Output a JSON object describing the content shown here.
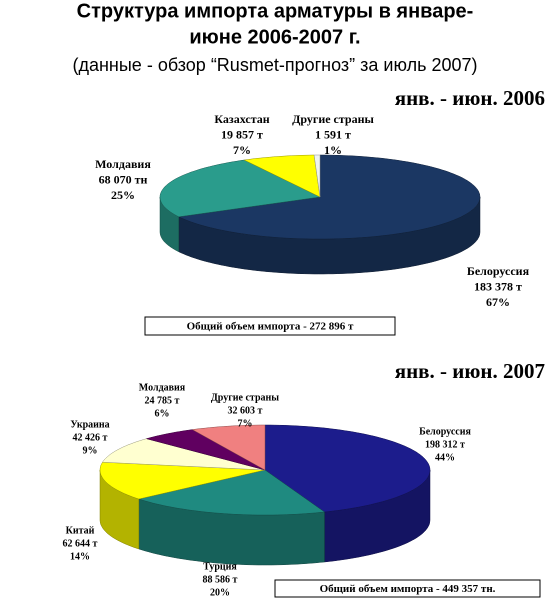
{
  "title_lines": [
    "Структура импорта арматуры в январе-",
    "июне 2006-2007 г."
  ],
  "subtitle": "(данные - обзор “Rusmet-прогноз” за июль 2007)",
  "chart_data": [
    {
      "type": "pie",
      "title": "янв. - июн. 2006",
      "categories": [
        "Белоруссия",
        "Молдавия",
        "Казахстан",
        "Другие страны"
      ],
      "values": [
        183378,
        68070,
        19857,
        1591
      ],
      "value_labels": [
        "183 378 т",
        "68 070 тн",
        "19 857 т",
        "1 591 т"
      ],
      "percents": [
        67,
        25,
        7,
        1
      ],
      "percent_labels": [
        "67%",
        "25%",
        "7%",
        "1%"
      ],
      "colors": [
        "#1b3763",
        "#2a9c8c",
        "#ffff00",
        "#eef4f0"
      ],
      "total_label": "Общий объем импорта - 272 896 т"
    },
    {
      "type": "pie",
      "title": "янв. - июн. 2007",
      "categories": [
        "Белоруссия",
        "Турция",
        "Китай",
        "Украина",
        "Молдавия",
        "Другие страны"
      ],
      "values": [
        198312,
        88586,
        62644,
        42426,
        24785,
        32603
      ],
      "value_labels": [
        "198 312 т",
        "88 586 т",
        "62 644 т",
        "42 426 т",
        "24 785 т",
        "32 603 т"
      ],
      "percents": [
        44,
        20,
        14,
        9,
        6,
        7
      ],
      "percent_labels": [
        "44%",
        "20%",
        "14%",
        "9%",
        "6%",
        "7%"
      ],
      "colors": [
        "#1c1c8c",
        "#1f8a80",
        "#ffff00",
        "#ffffd0",
        "#600060",
        "#f08080"
      ],
      "total_label": "Общий объем импорта - 449 357 тн."
    }
  ]
}
